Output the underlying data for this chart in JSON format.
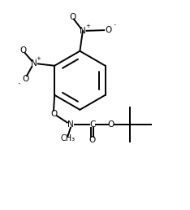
{
  "bg_color": "#ffffff",
  "line_color": "#000000",
  "line_width": 1.4,
  "font_size": 7.5,
  "figsize": [
    2.34,
    2.58
  ],
  "dpi": 100,
  "xlim": [
    0,
    10
  ],
  "ylim": [
    0,
    11
  ]
}
